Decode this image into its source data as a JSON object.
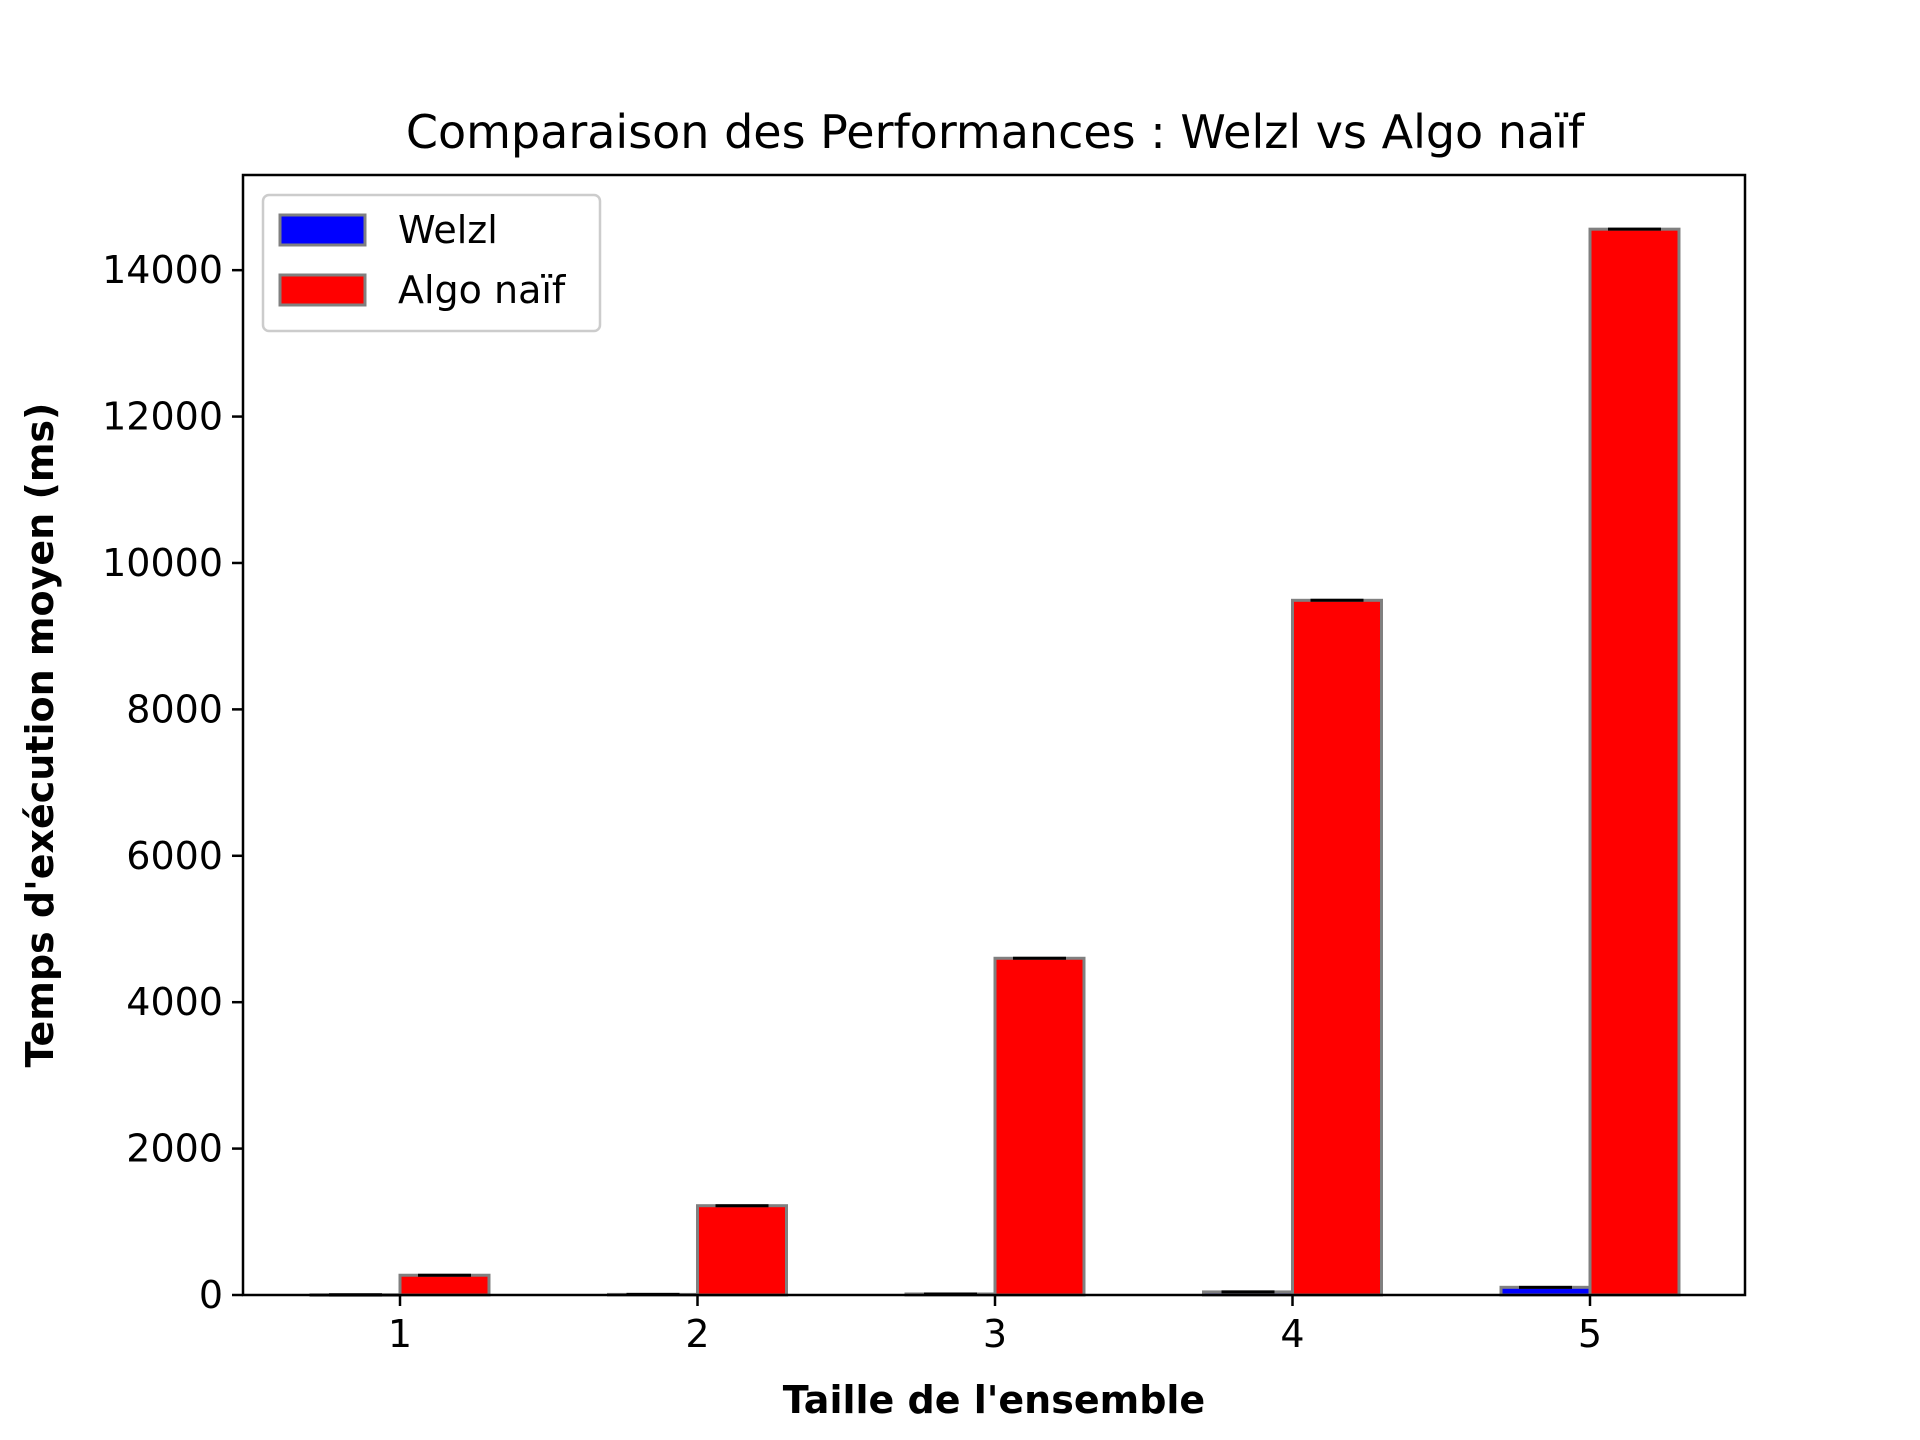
{
  "chart_data": {
    "type": "bar",
    "title": "Comparaison des Performances : Welzl vs Algo naïf",
    "xlabel": "Taille de l'ensemble",
    "ylabel": "Temps d'exécution moyen (ms)",
    "categories": [
      "1",
      "2",
      "3",
      "4",
      "5"
    ],
    "ylim": [
      0,
      15300
    ],
    "yticks": [
      0,
      2000,
      4000,
      6000,
      8000,
      10000,
      12000,
      14000
    ],
    "ytick_labels": [
      "0",
      "2000",
      "4000",
      "6000",
      "8000",
      "10000",
      "12000",
      "14000"
    ],
    "grid": false,
    "legend_position": "top-left",
    "bar_edge_color": "#808080",
    "series": [
      {
        "name": "Welzl",
        "color": "#0000ff",
        "values": [
          3,
          8,
          14,
          42,
          105
        ]
      },
      {
        "name": "Algo naïf",
        "color": "#ff0000",
        "values": [
          270,
          1220,
          4600,
          9490,
          14560
        ]
      }
    ]
  }
}
